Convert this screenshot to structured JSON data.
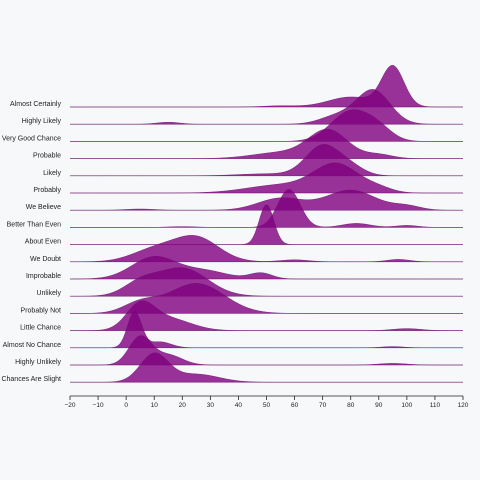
{
  "chart_data": {
    "type": "ridgeline",
    "title": "",
    "xlabel": "",
    "ylabel": "",
    "xlim": [
      -20,
      120
    ],
    "x_ticks": [
      -20,
      -10,
      0,
      10,
      20,
      30,
      40,
      50,
      60,
      70,
      80,
      90,
      100,
      110,
      120
    ],
    "fill_color": "#800080",
    "background_color": "#f7f8fa",
    "grid": false,
    "legend": "none",
    "categories": [
      "Almost Certainly",
      "Highly Likely",
      "Very Good Chance",
      "Probable",
      "Likely",
      "Probably",
      "We Believe",
      "Better Than Even",
      "About Even",
      "We Doubt",
      "Improbable",
      "Unlikely",
      "Probably Not",
      "Little Chance",
      "Almost No Chance",
      "Highly Unlikely",
      "Chances Are Slight"
    ],
    "series": [
      {
        "label": "Almost Certainly",
        "components": [
          [
            95,
            4,
            1.0
          ],
          [
            80,
            8,
            0.25
          ],
          [
            55,
            6,
            0.03
          ]
        ]
      },
      {
        "label": "Highly Likely",
        "components": [
          [
            88,
            6,
            0.85
          ],
          [
            75,
            6,
            0.2
          ],
          [
            15,
            4,
            0.05
          ]
        ]
      },
      {
        "label": "Very Good Chance",
        "components": [
          [
            80,
            7,
            0.75
          ],
          [
            90,
            5,
            0.25
          ]
        ]
      },
      {
        "label": "Probable",
        "components": [
          [
            72,
            7,
            0.7
          ],
          [
            55,
            10,
            0.15
          ],
          [
            90,
            5,
            0.1
          ]
        ]
      },
      {
        "label": "Likely",
        "components": [
          [
            70,
            6,
            0.75
          ],
          [
            80,
            5,
            0.2
          ],
          [
            50,
            10,
            0.05
          ]
        ]
      },
      {
        "label": "Probably",
        "components": [
          [
            75,
            8,
            0.7
          ],
          [
            55,
            12,
            0.2
          ],
          [
            90,
            5,
            0.1
          ]
        ]
      },
      {
        "label": "We Believe",
        "components": [
          [
            80,
            9,
            0.5
          ],
          [
            55,
            8,
            0.3
          ],
          [
            100,
            5,
            0.1
          ],
          [
            5,
            5,
            0.03
          ]
        ]
      },
      {
        "label": "Better Than Even",
        "components": [
          [
            58,
            4,
            0.95
          ],
          [
            82,
            5,
            0.1
          ],
          [
            100,
            4,
            0.05
          ],
          [
            20,
            5,
            0.02
          ]
        ]
      },
      {
        "label": "About Even",
        "components": [
          [
            50,
            2.6,
            1.0
          ]
        ]
      },
      {
        "label": "We Doubt",
        "components": [
          [
            25,
            8,
            0.6
          ],
          [
            10,
            8,
            0.3
          ],
          [
            60,
            5,
            0.05
          ],
          [
            97,
            4,
            0.06
          ]
        ]
      },
      {
        "label": "Improbable",
        "components": [
          [
            10,
            8,
            0.55
          ],
          [
            28,
            8,
            0.2
          ],
          [
            48,
            4,
            0.15
          ]
        ]
      },
      {
        "label": "Unlikely",
        "components": [
          [
            20,
            9,
            0.7
          ],
          [
            5,
            6,
            0.3
          ]
        ]
      },
      {
        "label": "Probably Not",
        "components": [
          [
            25,
            10,
            0.75
          ],
          [
            5,
            6,
            0.25
          ]
        ]
      },
      {
        "label": "Little Chance",
        "components": [
          [
            5,
            5,
            0.6
          ],
          [
            15,
            8,
            0.3
          ],
          [
            100,
            5,
            0.05
          ]
        ]
      },
      {
        "label": "Almost No Chance",
        "components": [
          [
            3,
            2.5,
            0.9
          ],
          [
            12,
            4,
            0.15
          ],
          [
            95,
            4,
            0.03
          ]
        ]
      },
      {
        "label": "Highly Unlikely",
        "components": [
          [
            5,
            4,
            0.7
          ],
          [
            15,
            5,
            0.25
          ],
          [
            95,
            5,
            0.04
          ]
        ]
      },
      {
        "label": "Chances Are Slight",
        "components": [
          [
            10,
            5,
            0.7
          ],
          [
            25,
            8,
            0.2
          ]
        ]
      }
    ]
  }
}
